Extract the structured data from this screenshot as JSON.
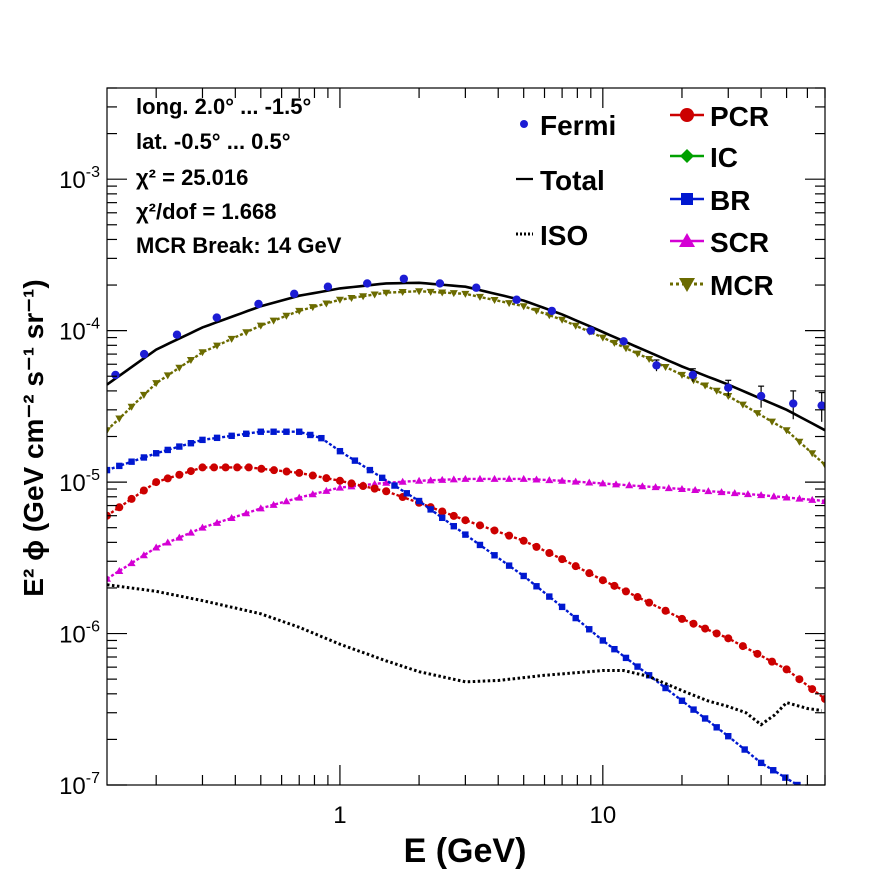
{
  "chart_data": {
    "type": "line",
    "xscale": "log",
    "yscale": "log",
    "xlim": [
      0.13,
      70
    ],
    "ylim": [
      1e-07,
      0.004
    ],
    "xlabel": "E (GeV)",
    "ylabel": "E² ϕ (GeV cm⁻² s⁻¹ sr⁻¹)",
    "x_ticks": [
      "1",
      "10"
    ],
    "y_ticks": [
      {
        "base": "10",
        "exp": "-7"
      },
      {
        "base": "10",
        "exp": "-6"
      },
      {
        "base": "10",
        "exp": "-5"
      },
      {
        "base": "10",
        "exp": "-4"
      },
      {
        "base": "10",
        "exp": "-3"
      }
    ],
    "annotations": [
      "long. 2.0° ... -1.5°",
      "lat. -0.5° ... 0.5°",
      "χ² = 25.016",
      "χ²/dof = 1.668",
      "MCR Break: 14 GeV"
    ],
    "legend_left": [
      "Fermi",
      "Total",
      "ISO"
    ],
    "legend_right": [
      "PCR",
      "IC",
      "BR",
      "SCR",
      "MCR"
    ],
    "colors": {
      "Fermi": "#1c1cd4",
      "Total": "#000000",
      "ISO": "#000000",
      "PCR": "#cc0000",
      "IC": "#00a000",
      "BR": "#0018d0",
      "SCR": "#d400d4",
      "MCR": "#6b6b00"
    },
    "series": [
      {
        "name": "Fermi",
        "style": "points",
        "x": [
          0.14,
          0.18,
          0.24,
          0.34,
          0.49,
          0.67,
          0.9,
          1.27,
          1.75,
          2.4,
          3.3,
          4.7,
          6.4,
          9,
          12,
          16,
          22,
          30,
          40,
          53,
          68
        ],
        "y": [
          5.1e-05,
          7e-05,
          9.4e-05,
          0.000122,
          0.00015,
          0.000175,
          0.000195,
          0.000205,
          0.00022,
          0.000205,
          0.000192,
          0.00016,
          0.000135,
          0.0001,
          8.5e-05,
          5.9e-05,
          5.1e-05,
          4.2e-05,
          3.7e-05,
          3.3e-05,
          3.2e-05
        ],
        "yerr": [
          0,
          0,
          0,
          0,
          0,
          0,
          0,
          0,
          0,
          0,
          0,
          0,
          0,
          0,
          0,
          5e-06,
          5e-06,
          5e-06,
          6e-06,
          7e-06,
          7e-06
        ]
      },
      {
        "name": "Total",
        "style": "solid",
        "x": [
          0.13,
          0.2,
          0.3,
          0.5,
          0.7,
          1,
          1.5,
          2,
          3,
          5,
          7,
          10,
          15,
          20,
          30,
          50,
          70
        ],
        "y": [
          4.4e-05,
          7.5e-05,
          0.000105,
          0.000145,
          0.00017,
          0.00019,
          0.000205,
          0.000207,
          0.000195,
          0.000158,
          0.000128,
          9.8e-05,
          7.2e-05,
          5.8e-05,
          4.4e-05,
          3e-05,
          2.2e-05
        ]
      },
      {
        "name": "ISO",
        "style": "dotted",
        "x": [
          0.13,
          0.2,
          0.3,
          0.5,
          0.7,
          1,
          1.5,
          2,
          3,
          4,
          6,
          10,
          12,
          15,
          20,
          25,
          30,
          35,
          40,
          45,
          50,
          60,
          68
        ],
        "y": [
          2.1e-06,
          1.9e-06,
          1.65e-06,
          1.35e-06,
          1.1e-06,
          8.5e-07,
          6.6e-07,
          5.6e-07,
          4.8e-07,
          4.9e-07,
          5.3e-07,
          5.7e-07,
          5.7e-07,
          5.2e-07,
          4.2e-07,
          3.6e-07,
          3.3e-07,
          3e-07,
          2.5e-07,
          2.9e-07,
          3.5e-07,
          3.2e-07,
          3.1e-07
        ]
      },
      {
        "name": "PCR",
        "style": "markers",
        "marker": "circle",
        "x": [
          0.13,
          0.2,
          0.3,
          0.45,
          0.7,
          1,
          1.5,
          2,
          3,
          5,
          7,
          10,
          15,
          20,
          30,
          50,
          70
        ],
        "y": [
          6e-06,
          1e-05,
          1.25e-05,
          1.25e-05,
          1.15e-05,
          1.02e-05,
          8.7e-06,
          7.3e-06,
          5.6e-06,
          4.1e-06,
          3.1e-06,
          2.25e-06,
          1.6e-06,
          1.25e-06,
          9.3e-07,
          5.8e-07,
          3.7e-07
        ]
      },
      {
        "name": "BR",
        "style": "markers",
        "marker": "square",
        "x": [
          0.13,
          0.2,
          0.3,
          0.5,
          0.7,
          0.85,
          1,
          1.3,
          2,
          3,
          5,
          7,
          10,
          15,
          20,
          30,
          40,
          55
        ],
        "y": [
          1.2e-05,
          1.55e-05,
          1.9e-05,
          2.15e-05,
          2.15e-05,
          1.95e-05,
          1.6e-05,
          1.2e-05,
          7.5e-06,
          4.5e-06,
          2.4e-06,
          1.5e-06,
          9e-07,
          5.3e-07,
          3.6e-07,
          2.1e-07,
          1.4e-07,
          1e-07
        ]
      },
      {
        "name": "SCR",
        "style": "markers",
        "marker": "triangle-up",
        "x": [
          0.13,
          0.2,
          0.3,
          0.5,
          0.7,
          1,
          1.5,
          2,
          3,
          5,
          7,
          10,
          20,
          40,
          70
        ],
        "y": [
          2.3e-06,
          3.7e-06,
          5e-06,
          6.7e-06,
          7.9e-06,
          9.2e-06,
          9.9e-06,
          1.02e-05,
          1.05e-05,
          1.05e-05,
          1.02e-05,
          9.8e-06,
          9e-06,
          8.2e-06,
          7.5e-06
        ]
      },
      {
        "name": "MCR",
        "style": "markers",
        "marker": "triangle-down",
        "x": [
          0.13,
          0.2,
          0.3,
          0.5,
          0.7,
          1,
          1.5,
          2,
          3,
          5,
          7,
          10,
          15,
          20,
          30,
          50,
          70
        ],
        "y": [
          2.2e-05,
          4.5e-05,
          7.2e-05,
          0.000108,
          0.000135,
          0.00016,
          0.000178,
          0.000182,
          0.000175,
          0.000145,
          0.000118,
          9e-05,
          6.5e-05,
          5.1e-05,
          3.7e-05,
          2.2e-05,
          1.3e-05
        ]
      }
    ]
  }
}
